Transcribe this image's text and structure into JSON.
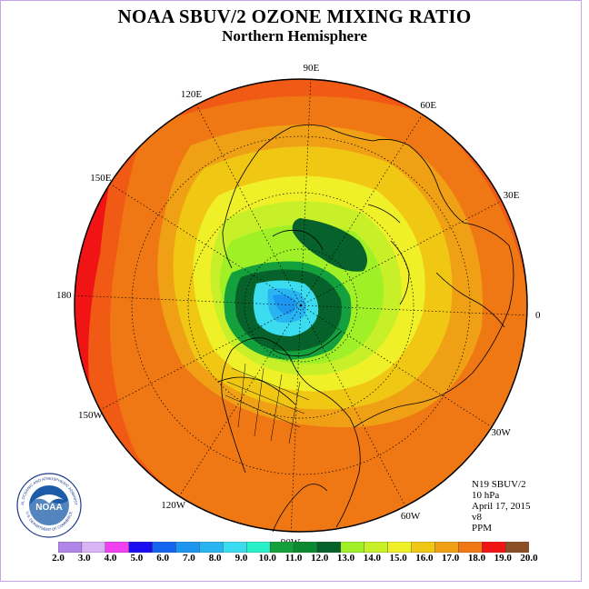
{
  "title": "NOAA SBUV/2 OZONE MIXING RATIO",
  "subtitle": "Northern Hemisphere",
  "longitude_labels": [
    {
      "text": "90E",
      "lon": 90
    },
    {
      "text": "60E",
      "lon": 60
    },
    {
      "text": "30E",
      "lon": 30
    },
    {
      "text": "0",
      "lon": 0
    },
    {
      "text": "30W",
      "lon": -30
    },
    {
      "text": "60W",
      "lon": -60
    },
    {
      "text": "90W",
      "lon": -90
    },
    {
      "text": "120W",
      "lon": -120
    },
    {
      "text": "150W",
      "lon": -150
    },
    {
      "text": "180",
      "lon": 180
    },
    {
      "text": "150E",
      "lon": 150
    },
    {
      "text": "120E",
      "lon": 120
    }
  ],
  "info": {
    "instrument": "N19 SBUV/2",
    "level": "10 hPa",
    "date": "April 17, 2015",
    "version": "v8",
    "units": "PPM"
  },
  "logo_text": {
    "center": "NOAA",
    "ring_top": "NATIONAL OCEANIC AND ATMOSPHERIC ADMINISTRATION",
    "ring_bottom": "U.S. DEPARTMENT OF COMMERCE"
  },
  "colorbar": {
    "ticks": [
      "2.0",
      "3.0",
      "4.0",
      "5.0",
      "6.0",
      "7.0",
      "8.0",
      "9.0",
      "10.0",
      "11.0",
      "12.0",
      "13.0",
      "14.0",
      "15.0",
      "16.0",
      "17.0",
      "18.0",
      "19.0",
      "20.0"
    ],
    "colors": [
      "#b285e8",
      "#d9b4f5",
      "#f040f0",
      "#1c0cf0",
      "#1464f0",
      "#1e96f0",
      "#28b4f0",
      "#3cdcf0",
      "#28f0c8",
      "#14a03c",
      "#0c8a32",
      "#06622a",
      "#a0f028",
      "#c8f028",
      "#f0f028",
      "#f0c814",
      "#f0a014",
      "#f07814",
      "#f01414",
      "#8c5028"
    ]
  },
  "legend": {
    "ring_colors": [
      "#f01414",
      "#f05a14",
      "#f07814",
      "#f0a014",
      "#f0c814",
      "#f0f028",
      "#c8f028",
      "#a0f028",
      "#14a03c",
      "#06622a",
      "#1e96f0",
      "#3cdcf0"
    ]
  }
}
